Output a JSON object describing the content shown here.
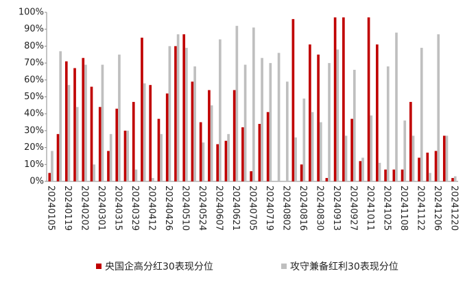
{
  "chart_data": {
    "type": "bar",
    "categories": [
      "20240105",
      null,
      "20240119",
      null,
      "20240202",
      null,
      "20240301",
      null,
      "20240315",
      null,
      "20240329",
      null,
      "20240412",
      null,
      "20240426",
      null,
      "20240510",
      null,
      "20240524",
      null,
      "20240607",
      null,
      "20240621",
      null,
      "20240705",
      null,
      "20240719",
      null,
      "20240802",
      null,
      "20240816",
      null,
      "20240830",
      null,
      "20240913",
      null,
      "20240927",
      null,
      "20241011",
      null,
      "20241025",
      null,
      "20241108",
      null,
      "20241122",
      null,
      "20241206",
      null,
      "20241220"
    ],
    "series": [
      {
        "name": "央国企高分红30表现分位",
        "color": "#c00000",
        "values": [
          5,
          28,
          71,
          67,
          73,
          56,
          44,
          18,
          43,
          30,
          47,
          85,
          57,
          37,
          52,
          80,
          87,
          59,
          35,
          54,
          22,
          24,
          54,
          32,
          6,
          34,
          41,
          0,
          0,
          96,
          10,
          81,
          75,
          2,
          97,
          97,
          37,
          12,
          97,
          81,
          7,
          7,
          7,
          47,
          14,
          17,
          18,
          27,
          2
        ]
      },
      {
        "name": "攻守兼备红利30表现分位",
        "color": "#bfbfbf",
        "values": [
          18,
          77,
          57,
          44,
          69,
          10,
          69,
          28,
          75,
          30,
          7,
          58,
          2,
          28,
          80,
          87,
          79,
          68,
          23,
          45,
          84,
          28,
          92,
          69,
          91,
          73,
          70,
          76,
          59,
          26,
          49,
          41,
          35,
          70,
          78,
          27,
          66,
          14,
          39,
          11,
          68,
          88,
          36,
          27,
          79,
          5,
          87,
          27,
          3
        ]
      }
    ],
    "ylim": [
      0,
      100
    ],
    "yticks": [
      {
        "value": 0,
        "label": "0%"
      },
      {
        "value": 10,
        "label": "10%"
      },
      {
        "value": 20,
        "label": "20%"
      },
      {
        "value": 30,
        "label": "30%"
      },
      {
        "value": 40,
        "label": "40%"
      },
      {
        "value": 50,
        "label": "50%"
      },
      {
        "value": 60,
        "label": "60%"
      },
      {
        "value": 70,
        "label": "70%"
      },
      {
        "value": 80,
        "label": "80%"
      },
      {
        "value": 90,
        "label": "90%"
      },
      {
        "value": 100,
        "label": "100%"
      }
    ],
    "grid": false
  }
}
